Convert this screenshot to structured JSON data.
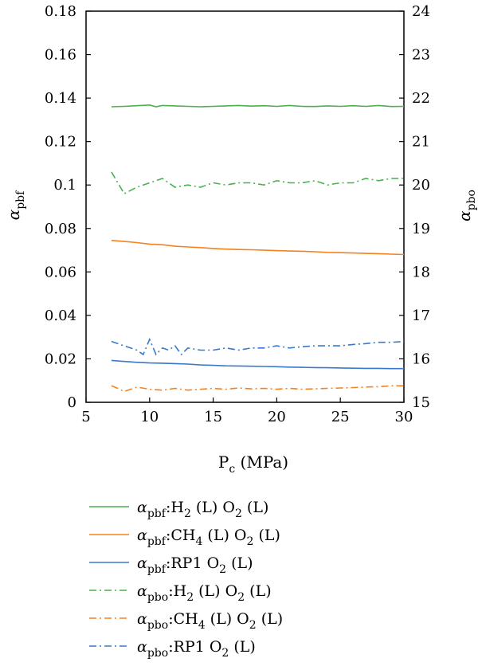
{
  "chart_data": {
    "type": "line",
    "xlabel": "P_c (MPa)",
    "xlabel_main": "P",
    "xlabel_sub": "c",
    "xlabel_rest": " (MPa)",
    "ylabel_left_main": "α",
    "ylabel_left_sub": "pbf",
    "ylabel_right_main": "α",
    "ylabel_right_sub": "pbo",
    "xlim": [
      5,
      30
    ],
    "ylim_left": [
      0,
      0.18
    ],
    "ylim_right": [
      15,
      24
    ],
    "x_ticks": [
      "5",
      "10",
      "15",
      "20",
      "25",
      "30"
    ],
    "y_left_ticks": [
      "0",
      "0.02",
      "0.04",
      "0.06",
      "0.08",
      "0.1",
      "0.12",
      "0.14",
      "0.16",
      "0.18"
    ],
    "y_right_ticks": [
      "15",
      "16",
      "17",
      "18",
      "19",
      "20",
      "21",
      "22",
      "23",
      "24"
    ],
    "legend_position": "below",
    "series": [
      {
        "axis": "left",
        "style": "solid",
        "color": "#4CAF50",
        "legend": {
          "main": "α",
          "sub": "pbf",
          "parts": [
            [
              ":H",
              ""
            ],
            [
              "2",
              "sub"
            ],
            [
              " (L) O",
              ""
            ],
            [
              "2",
              "sub"
            ],
            [
              " (L)",
              ""
            ]
          ]
        },
        "x": [
          7,
          8,
          9,
          10,
          10.5,
          11,
          12,
          13,
          14,
          15,
          16,
          17,
          18,
          19,
          20,
          21,
          22,
          23,
          24,
          25,
          26,
          27,
          28,
          29,
          30
        ],
        "y": [
          0.136,
          0.1362,
          0.1365,
          0.1368,
          0.136,
          0.1366,
          0.1364,
          0.1362,
          0.136,
          0.1362,
          0.1364,
          0.1366,
          0.1363,
          0.1365,
          0.1362,
          0.1366,
          0.1362,
          0.1361,
          0.1364,
          0.1362,
          0.1365,
          0.1362,
          0.1366,
          0.1361,
          0.1362
        ]
      },
      {
        "axis": "left",
        "style": "solid",
        "color": "#F5821F",
        "legend": {
          "main": "α",
          "sub": "pbf",
          "parts": [
            [
              ":CH",
              ""
            ],
            [
              "4",
              "sub"
            ],
            [
              " (L) O",
              ""
            ],
            [
              "2",
              "sub"
            ],
            [
              " (L)",
              ""
            ]
          ]
        },
        "x": [
          7,
          8,
          9,
          10,
          11,
          12,
          13,
          14,
          15,
          16,
          17,
          18,
          19,
          20,
          21,
          22,
          23,
          24,
          25,
          26,
          27,
          28,
          29,
          30
        ],
        "y": [
          0.0745,
          0.074,
          0.0735,
          0.0728,
          0.0725,
          0.0718,
          0.0715,
          0.0712,
          0.0708,
          0.0705,
          0.0703,
          0.0702,
          0.07,
          0.0698,
          0.0696,
          0.0695,
          0.0693,
          0.069,
          0.0689,
          0.0687,
          0.0685,
          0.0684,
          0.0682,
          0.068
        ]
      },
      {
        "axis": "left",
        "style": "solid",
        "color": "#3A78C9",
        "legend": {
          "main": "α",
          "sub": "pbf",
          "parts": [
            [
              ":RP1 O",
              ""
            ],
            [
              "2",
              "sub"
            ],
            [
              " (L)",
              ""
            ]
          ]
        },
        "x": [
          7,
          8,
          9,
          10,
          11,
          12,
          13,
          14,
          15,
          16,
          17,
          18,
          19,
          20,
          21,
          22,
          23,
          24,
          25,
          26,
          27,
          28,
          29,
          30
        ],
        "y": [
          0.0193,
          0.0188,
          0.0184,
          0.0181,
          0.018,
          0.0178,
          0.0176,
          0.0172,
          0.017,
          0.0168,
          0.0167,
          0.0166,
          0.0165,
          0.0164,
          0.0162,
          0.0161,
          0.016,
          0.0159,
          0.0158,
          0.0157,
          0.0156,
          0.0156,
          0.0155,
          0.0155
        ]
      },
      {
        "axis": "right",
        "style": "dashdot",
        "color": "#4CAF50",
        "legend": {
          "main": "α",
          "sub": "pbo",
          "parts": [
            [
              ":H",
              ""
            ],
            [
              "2",
              "sub"
            ],
            [
              " (L) O",
              ""
            ],
            [
              "2",
              "sub"
            ],
            [
              " (L)",
              ""
            ]
          ]
        },
        "x": [
          7,
          7.5,
          8,
          9,
          10,
          11,
          12,
          13,
          14,
          15,
          16,
          17,
          18,
          19,
          20,
          21,
          22,
          23,
          24,
          25,
          26,
          27,
          28,
          29,
          30
        ],
        "y": [
          20.3,
          20.05,
          19.8,
          19.95,
          20.05,
          20.15,
          19.95,
          20.0,
          19.95,
          20.05,
          20.0,
          20.05,
          20.05,
          20.0,
          20.1,
          20.05,
          20.05,
          20.1,
          20.0,
          20.05,
          20.05,
          20.15,
          20.1,
          20.15,
          20.15
        ]
      },
      {
        "axis": "right",
        "style": "dashdot",
        "color": "#F5821F",
        "legend": {
          "main": "α",
          "sub": "pbo",
          "parts": [
            [
              ":CH",
              ""
            ],
            [
              "4",
              "sub"
            ],
            [
              " (L) O",
              ""
            ],
            [
              "2",
              "sub"
            ],
            [
              " (L)",
              ""
            ]
          ]
        },
        "x": [
          7,
          7.5,
          8,
          9,
          10,
          11,
          12,
          13,
          14,
          15,
          16,
          17,
          18,
          19,
          20,
          21,
          22,
          23,
          24,
          25,
          26,
          27,
          28,
          29,
          30
        ],
        "y": [
          15.38,
          15.32,
          15.25,
          15.35,
          15.3,
          15.28,
          15.32,
          15.28,
          15.3,
          15.32,
          15.3,
          15.33,
          15.31,
          15.32,
          15.3,
          15.32,
          15.3,
          15.31,
          15.32,
          15.33,
          15.34,
          15.35,
          15.36,
          15.38,
          15.38
        ]
      },
      {
        "axis": "right",
        "style": "dashdot",
        "color": "#3A78C9",
        "legend": {
          "main": "α",
          "sub": "pbo",
          "parts": [
            [
              ":RP1 O",
              ""
            ],
            [
              "2",
              "sub"
            ],
            [
              " (L)",
              ""
            ]
          ]
        },
        "x": [
          7,
          8,
          9,
          9.5,
          10,
          10.5,
          11,
          11.5,
          12,
          12.5,
          13,
          14,
          15,
          16,
          17,
          18,
          19,
          20,
          21,
          22,
          23,
          24,
          25,
          26,
          27,
          28,
          29,
          30
        ],
        "y": [
          16.4,
          16.3,
          16.2,
          16.1,
          16.45,
          16.1,
          16.25,
          16.2,
          16.3,
          16.1,
          16.25,
          16.2,
          16.2,
          16.25,
          16.2,
          16.25,
          16.25,
          16.3,
          16.25,
          16.28,
          16.3,
          16.3,
          16.3,
          16.33,
          16.35,
          16.38,
          16.38,
          16.4
        ]
      }
    ]
  }
}
